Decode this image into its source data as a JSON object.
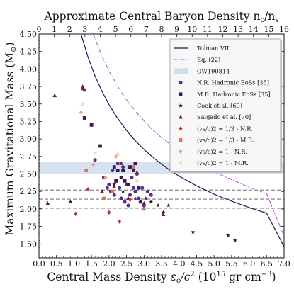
{
  "chart_data": {
    "type": "scatter",
    "xlabel_prefix": "Central Mass Density ",
    "xlabel_symbol": "ε",
    "xlabel_sub": "c",
    "xlabel_mid": "/c",
    "xlabel_sup": "2",
    "xlabel_unit": " (10",
    "xlabel_unit_sup": "15",
    "xlabel_unit_tail": " gr cm",
    "xlabel_unit_sup2": "−3",
    "xlabel_close": ")",
    "ylabel": "Maximum Gravitational Mass (M",
    "ylabel_symbol": "⊙",
    "ylabel_close": ")",
    "top_label_prefix": "Approximate Central Baryon Density n",
    "top_label_sub1": "c",
    "top_label_slash": "/n",
    "top_label_sub2": "s",
    "xlim": [
      0.0,
      7.0
    ],
    "ylim": [
      1.3,
      4.5
    ],
    "top_xlim": [
      0,
      16
    ],
    "xticks": [
      "0.0",
      "0.5",
      "1.0",
      "1.5",
      "2.0",
      "2.5",
      "3.0",
      "3.5",
      "4.0",
      "4.5",
      "5.0",
      "5.5",
      "6.0",
      "6.5",
      "7.0"
    ],
    "yticks": [
      "1.50",
      "1.75",
      "2.00",
      "2.25",
      "2.50",
      "2.75",
      "3.00",
      "3.25",
      "3.50",
      "3.75",
      "4.00",
      "4.25",
      "4.50"
    ],
    "top_ticks": [
      "0",
      "1",
      "2",
      "3",
      "4",
      "5",
      "6",
      "7",
      "8",
      "9",
      "10",
      "11",
      "12",
      "13",
      "14",
      "15",
      "16"
    ],
    "band": {
      "ymin": 2.5,
      "ymax": 2.67
    },
    "hlines": [
      2.01,
      2.14,
      2.27
    ],
    "tolman": {
      "x": [
        1.2,
        1.4,
        1.6,
        1.8,
        2.0,
        2.2,
        2.4,
        2.6,
        2.8,
        3.0,
        3.25,
        3.5,
        3.75,
        4.0,
        4.5,
        5.0,
        5.5,
        6.0,
        6.5,
        7.0
      ],
      "y": [
        4.5,
        4.17,
        3.9,
        3.68,
        3.49,
        3.33,
        3.19,
        3.06,
        2.95,
        2.85,
        2.74,
        2.64,
        2.55,
        2.47,
        2.33,
        2.21,
        2.11,
        2.02,
        1.94,
        1.46
      ]
    },
    "eq22": {
      "x": [
        1.55,
        1.8,
        2.0,
        2.2,
        2.4,
        2.6,
        2.8,
        3.0,
        3.25,
        3.5,
        3.75,
        4.0,
        4.5,
        5.0,
        5.5,
        6.0,
        6.5,
        7.0
      ],
      "y": [
        4.5,
        4.18,
        3.97,
        3.79,
        3.63,
        3.49,
        3.37,
        3.26,
        3.13,
        3.02,
        2.92,
        2.83,
        2.67,
        2.53,
        2.42,
        2.31,
        2.22,
        1.61
      ]
    },
    "series": [
      {
        "name": "N.R. Hadronic EoSs [35]",
        "marker": "circle",
        "color": "#5b2c8f",
        "x": [
          1.3,
          1.6,
          1.85,
          2.0,
          2.05,
          2.15,
          2.2,
          2.3,
          2.35,
          2.4,
          2.45,
          2.5,
          2.55,
          2.6,
          2.65,
          2.7,
          2.75,
          2.8,
          2.85,
          2.9,
          2.95,
          3.0,
          3.1,
          3.2,
          2.1,
          2.25,
          1.95
        ],
        "y": [
          3.7,
          2.7,
          2.45,
          2.35,
          2.25,
          2.2,
          2.4,
          2.3,
          2.15,
          2.6,
          2.1,
          2.35,
          2.05,
          2.2,
          2.45,
          2.3,
          2.25,
          2.5,
          2.15,
          2.1,
          2.3,
          2.05,
          2.25,
          2.2,
          2.55,
          2.65,
          2.3
        ]
      },
      {
        "name": "M.R. Hadronic EoSs [35]",
        "marker": "square",
        "color": "#3a1757",
        "x": [
          1.3,
          1.5,
          1.75,
          2.15,
          2.25,
          2.35,
          2.45,
          2.55,
          2.6,
          2.7,
          2.75,
          2.85,
          2.2,
          2.4
        ],
        "y": [
          3.3,
          3.2,
          2.9,
          2.6,
          2.55,
          2.45,
          2.4,
          2.35,
          2.6,
          2.55,
          2.65,
          2.3,
          2.4,
          2.55
        ]
      },
      {
        "name": "Cook et al. [69]",
        "marker": "star",
        "color": "#2a1a3a",
        "x": [
          0.9,
          1.25,
          2.15,
          2.4,
          2.75,
          2.9,
          3.05,
          3.2,
          3.4,
          3.55,
          3.7,
          4.4,
          5.4,
          5.6
        ],
        "y": [
          2.1,
          3.75,
          2.35,
          2.25,
          2.15,
          2.1,
          2.15,
          2.1,
          2.05,
          1.95,
          2.05,
          1.67,
          1.62,
          1.55
        ]
      },
      {
        "name": "Salgado et al. [70]",
        "marker": "triangle",
        "color": "#7a1f2a",
        "x": [
          0.25,
          0.45,
          1.25,
          1.8,
          2.15,
          2.35,
          2.55,
          2.8,
          3.0,
          3.55
        ],
        "y": [
          2.08,
          3.62,
          3.72,
          2.25,
          2.32,
          2.65,
          2.15,
          2.52,
          2.08,
          1.92
        ]
      },
      {
        "name": "(v_s/c)^2 = 1/3 - N.R.",
        "marker": "diamond",
        "color": "#a83a3a",
        "x": [
          1.05,
          1.4,
          2.0,
          2.3,
          2.6
        ],
        "y": [
          1.93,
          2.28,
          1.95,
          1.82,
          2.13
        ]
      },
      {
        "name": "(v_s/c)^2 = 1/3 - M.R.",
        "marker": "square",
        "color": "#d9735a",
        "x": [
          1.35,
          1.85,
          2.1,
          2.7,
          3.0
        ],
        "y": [
          2.55,
          2.15,
          2.25,
          2.6,
          2.0
        ]
      },
      {
        "name": "(v_s/c)^2 = 1 - N.R.",
        "marker": "diamond",
        "color": "#e0a57a",
        "x": [
          1.2,
          1.55,
          1.9,
          2.2
        ],
        "y": [
          3.38,
          2.63,
          2.45,
          2.75
        ]
      },
      {
        "name": "(v_s/c)^2 = 1 - M.R.",
        "marker": "circle",
        "color": "#f2dccc",
        "x": [
          1.25,
          1.6,
          2.25,
          2.8
        ],
        "y": [
          3.5,
          2.8,
          2.78,
          2.4
        ]
      }
    ],
    "legend": {
      "placement": "top-right",
      "items": [
        {
          "label": "Tolman VII",
          "kind": "line",
          "color": "#1a1a55",
          "dash": "solid"
        },
        {
          "label": "Eq. (22)",
          "kind": "line",
          "color": "#b54de0",
          "dash": "dashdot"
        },
        {
          "label": "GW190814",
          "kind": "patch",
          "color": "#cfdcee"
        },
        {
          "label": "N.R. Hadronic EoSs [35]",
          "kind": "marker",
          "marker": "circle",
          "color": "#5b2c8f"
        },
        {
          "label": "M.R. Hadronic EoSs [35]",
          "kind": "marker",
          "marker": "square",
          "color": "#3a1757"
        },
        {
          "label": "Cook et al. [69]",
          "kind": "marker",
          "marker": "star",
          "color": "#2a1a3a"
        },
        {
          "label": "Salgado et al. [70]",
          "kind": "marker",
          "marker": "triangle",
          "color": "#7a1f2a"
        },
        {
          "label": "(vs/c)2 = 1/3 - N.R.",
          "kind": "marker",
          "marker": "diamond",
          "color": "#a83a3a"
        },
        {
          "label": "(vs/c)2 = 1/3 - M.R.",
          "kind": "marker",
          "marker": "square",
          "color": "#d9735a"
        },
        {
          "label": "(vs/c)2 = 1 - N.R.",
          "kind": "marker",
          "marker": "diamond",
          "color": "#e0a57a"
        },
        {
          "label": "(vs/c)2 = 1 - M.R.",
          "kind": "marker",
          "marker": "circle",
          "color": "#f2dccc"
        }
      ]
    }
  }
}
